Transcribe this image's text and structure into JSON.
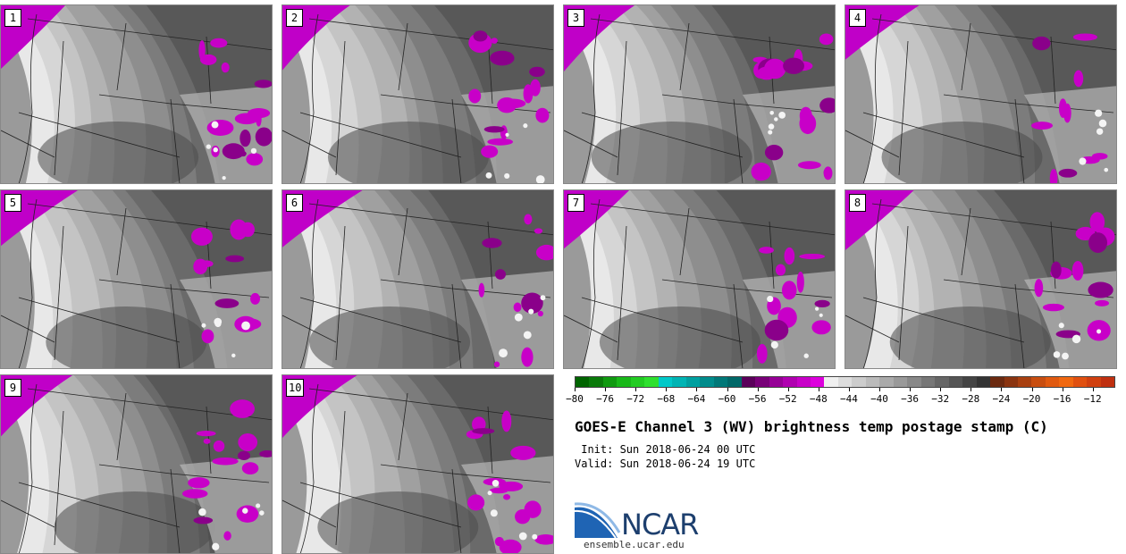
{
  "stamps": [
    {
      "label": "1"
    },
    {
      "label": "2"
    },
    {
      "label": "3"
    },
    {
      "label": "4"
    },
    {
      "label": "5"
    },
    {
      "label": "6"
    },
    {
      "label": "7"
    },
    {
      "label": "8"
    },
    {
      "label": "9"
    },
    {
      "label": "10"
    }
  ],
  "colorbar": {
    "ticks": [
      "−80",
      "−76",
      "−72",
      "−68",
      "−64",
      "−60",
      "−56",
      "−52",
      "−48",
      "−44",
      "−40",
      "−36",
      "−32",
      "−28",
      "−24",
      "−20",
      "−16",
      "−12"
    ],
    "colors": [
      "#006400",
      "#0a7a0a",
      "#109a10",
      "#18b818",
      "#22cc22",
      "#2ee02e",
      "#00c8c8",
      "#00b4b4",
      "#00a0a0",
      "#008c8c",
      "#007878",
      "#006868",
      "#5a005a",
      "#780078",
      "#960096",
      "#b000b0",
      "#c800c8",
      "#dd00dd",
      "#f0f0f0",
      "#dddddd",
      "#cccccc",
      "#bbbbbb",
      "#aaaaaa",
      "#999999",
      "#888888",
      "#777777",
      "#666666",
      "#555555",
      "#444444",
      "#333333",
      "#6b2a10",
      "#8a3410",
      "#a84010",
      "#c84e10",
      "#e05a10",
      "#f06810",
      "#e05010",
      "#d04010",
      "#c03010"
    ]
  },
  "title": "GOES-E Channel 3 (WV) brightness temp postage stamp (C)",
  "init": " Init: Sun 2018-06-24 00 UTC",
  "valid": "Valid: Sun 2018-06-24 19 UTC",
  "logo": {
    "name": "NCAR",
    "url": "ensemble.ucar.edu"
  }
}
